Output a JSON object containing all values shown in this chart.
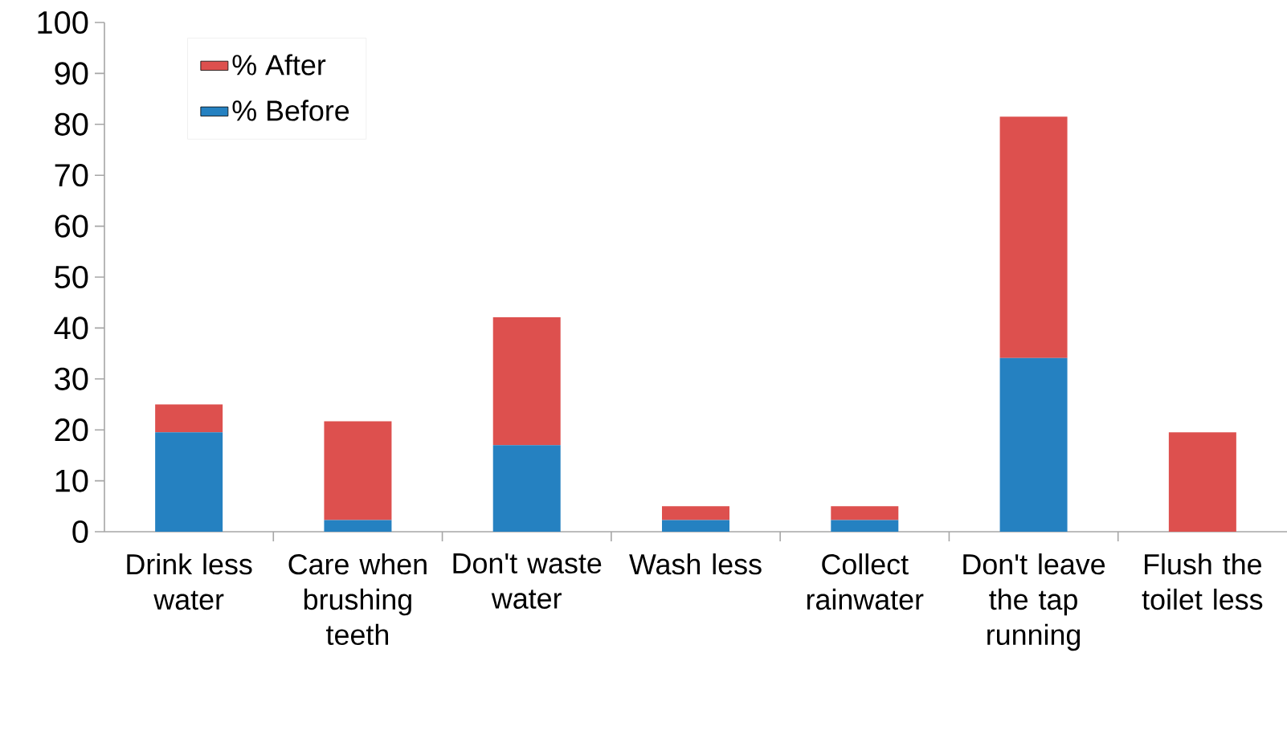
{
  "chart_data": {
    "type": "bar",
    "stacked": true,
    "categories": [
      "Drink less water",
      "Care when brushing teeth",
      "Don't waste water",
      "Wash less",
      "Collect rainwater",
      "Don't leave the tap running",
      "Flush the toilet less"
    ],
    "series": [
      {
        "name": "% Before",
        "color": "#2581c1",
        "values": [
          19.5,
          2.3,
          17.0,
          2.3,
          2.3,
          34.1,
          0
        ]
      },
      {
        "name": "% After",
        "color": "#dd504e",
        "values": [
          5.5,
          19.4,
          25.1,
          2.7,
          2.7,
          47.4,
          19.5
        ]
      }
    ],
    "ylim": [
      0,
      100
    ],
    "yticks": [
      0,
      10,
      20,
      30,
      40,
      50,
      60,
      70,
      80,
      90,
      100
    ],
    "grid": false,
    "legend": "top left"
  }
}
